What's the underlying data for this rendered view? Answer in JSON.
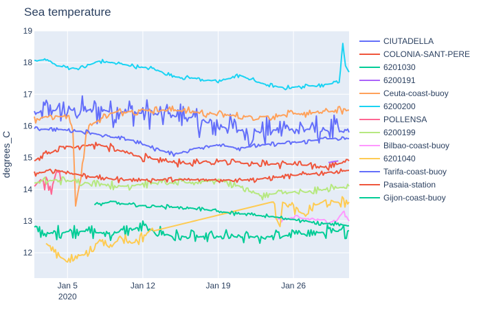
{
  "chart_data": {
    "type": "line",
    "title": "Sea temperature",
    "xlabel": "",
    "ylabel": "degrees_C",
    "x_range": [
      "2020-01-01T22:00",
      "2020-01-31T04:00"
    ],
    "xticks": [
      {
        "date": "2020-01-05",
        "label": "Jan 5",
        "sublabel": "2020"
      },
      {
        "date": "2020-01-12",
        "label": "Jan 12",
        "sublabel": ""
      },
      {
        "date": "2020-01-19",
        "label": "Jan 19",
        "sublabel": ""
      },
      {
        "date": "2020-01-26",
        "label": "Jan 26",
        "sublabel": ""
      }
    ],
    "ylim": [
      11.2,
      19.0
    ],
    "yticks": [
      12,
      13,
      14,
      15,
      16,
      17,
      18,
      19
    ],
    "grid": true,
    "legend_position": "right",
    "series": [
      {
        "name": "CIUTADELLA",
        "color": "#636efa",
        "style": "noisy",
        "amp": 0.55,
        "points": [
          [
            "2020-01-01T22:00",
            16.4
          ],
          [
            "2020-01-04",
            16.5
          ],
          [
            "2020-01-08",
            16.5
          ],
          [
            "2020-01-12",
            16.4
          ],
          [
            "2020-01-16",
            16.3
          ],
          [
            "2020-01-19",
            16.0
          ],
          [
            "2020-01-22",
            15.8
          ],
          [
            "2020-01-25",
            15.9
          ],
          [
            "2020-01-28",
            15.9
          ],
          [
            "2020-01-31T04:00",
            15.8
          ]
        ]
      },
      {
        "name": "COLONIA-SANT-PERE",
        "color": "#ef553b",
        "style": "noisy",
        "amp": 0.15,
        "points": [
          [
            "2020-01-01T22:00",
            14.9
          ],
          [
            "2020-01-03",
            15.1
          ],
          [
            "2020-01-05",
            15.35
          ],
          [
            "2020-01-08",
            15.4
          ],
          [
            "2020-01-10",
            15.2
          ],
          [
            "2020-01-12",
            15.0
          ],
          [
            "2020-01-14",
            14.9
          ],
          [
            "2020-01-16",
            14.8
          ],
          [
            "2020-01-18",
            14.9
          ],
          [
            "2020-01-20",
            14.9
          ],
          [
            "2020-01-23",
            14.8
          ],
          [
            "2020-01-26",
            14.8
          ],
          [
            "2020-01-29",
            14.7
          ],
          [
            "2020-01-31T04:00",
            14.9
          ]
        ]
      },
      {
        "name": "6201030",
        "color": "#00cc96",
        "style": "noisy",
        "amp": 0.25,
        "points": [
          [
            "2020-01-01T22:00",
            12.8
          ],
          [
            "2020-01-03",
            12.6
          ],
          [
            "2020-01-06",
            12.7
          ],
          [
            "2020-01-09",
            12.6
          ],
          [
            "2020-01-12",
            12.8
          ],
          [
            "2020-01-15",
            12.5
          ],
          [
            "2020-01-18",
            12.5
          ],
          [
            "2020-01-21",
            12.5
          ],
          [
            "2020-01-24",
            12.5
          ],
          [
            "2020-01-27",
            12.6
          ],
          [
            "2020-01-31T04:00",
            12.7
          ]
        ]
      },
      {
        "name": "6200191",
        "color": "#ab63fa",
        "style": "noisy",
        "amp": 0.02,
        "points": [
          [
            "2020-01-29T06:00",
            14.85
          ],
          [
            "2020-01-30T04:00",
            14.9
          ]
        ]
      },
      {
        "name": "Ceuta-coast-buoy",
        "color": "#ffa15a",
        "style": "noisy",
        "amp": 0.15,
        "points": [
          [
            "2020-01-01T22:00",
            16.2
          ],
          [
            "2020-01-03",
            16.3
          ],
          [
            "2020-01-05",
            16.3
          ],
          [
            "2020-01-05T12:00",
            15.9
          ],
          [
            "2020-01-05T18:00",
            13.5
          ],
          [
            "2020-01-06T06:00",
            14.4
          ],
          [
            "2020-01-06T18:00",
            15.8
          ],
          [
            "2020-01-07",
            16.0
          ],
          [
            "2020-01-09",
            16.4
          ],
          [
            "2020-01-12",
            16.5
          ],
          [
            "2020-01-15",
            16.5
          ],
          [
            "2020-01-18",
            16.4
          ],
          [
            "2020-01-21",
            16.3
          ],
          [
            "2020-01-24",
            16.3
          ],
          [
            "2020-01-27",
            16.4
          ],
          [
            "2020-01-31T04:00",
            16.5
          ]
        ]
      },
      {
        "name": "6200200",
        "color": "#19d3f3",
        "style": "noisy",
        "amp": 0.08,
        "points": [
          [
            "2020-01-01T22:00",
            18.05
          ],
          [
            "2020-01-03",
            18.1
          ],
          [
            "2020-01-04",
            17.9
          ],
          [
            "2020-01-06",
            17.8
          ],
          [
            "2020-01-08",
            18.05
          ],
          [
            "2020-01-10",
            17.95
          ],
          [
            "2020-01-13",
            17.8
          ],
          [
            "2020-01-15",
            17.55
          ],
          [
            "2020-01-17",
            17.5
          ],
          [
            "2020-01-19",
            17.4
          ],
          [
            "2020-01-21",
            17.6
          ],
          [
            "2020-01-23",
            17.35
          ],
          [
            "2020-01-25",
            17.2
          ],
          [
            "2020-01-27",
            17.25
          ],
          [
            "2020-01-29",
            17.3
          ],
          [
            "2020-01-30T06:00",
            17.4
          ],
          [
            "2020-01-30T14:00",
            18.6
          ],
          [
            "2020-01-30T20:00",
            17.9
          ],
          [
            "2020-01-31T04:00",
            17.7
          ]
        ]
      },
      {
        "name": "POLLENSA",
        "color": "#ff6692",
        "style": "noisy",
        "amp": 0.3,
        "points": [
          [
            "2020-01-01T22:00",
            14.1
          ],
          [
            "2020-01-02T12:00",
            14.3
          ],
          [
            "2020-01-03T12:00",
            14.0
          ],
          [
            "2020-01-04",
            14.6
          ],
          [
            "2020-01-04T12:00",
            14.3
          ]
        ]
      },
      {
        "name": "6200199",
        "color": "#b6e880",
        "style": "noisy",
        "amp": 0.15,
        "points": [
          [
            "2020-01-01T22:00",
            14.2
          ],
          [
            "2020-01-04",
            14.3
          ],
          [
            "2020-01-07",
            14.2
          ],
          [
            "2020-01-10",
            14.1
          ],
          [
            "2020-01-13",
            14.2
          ],
          [
            "2020-01-16",
            14.2
          ],
          [
            "2020-01-19",
            14.3
          ],
          [
            "2020-01-21",
            14.1
          ],
          [
            "2020-01-23",
            13.8
          ],
          [
            "2020-01-25",
            13.9
          ],
          [
            "2020-01-27",
            13.9
          ],
          [
            "2020-01-29",
            14.0
          ],
          [
            "2020-01-31T04:00",
            14.1
          ]
        ]
      },
      {
        "name": "Bilbao-coast-buoy",
        "color": "#ff97ff",
        "style": "noisy",
        "amp": 0.1,
        "points": [
          [
            "2020-01-24T12:00",
            13.0
          ],
          [
            "2020-01-26",
            13.1
          ],
          [
            "2020-01-28",
            13.05
          ],
          [
            "2020-01-30",
            13.0
          ],
          [
            "2020-01-30T14:00",
            13.3
          ],
          [
            "2020-01-31T04:00",
            13.0
          ]
        ]
      },
      {
        "name": "6201040",
        "color": "#fecb52",
        "style": "noisy",
        "amp": 0.2,
        "points": [
          [
            "2020-01-03",
            12.3
          ],
          [
            "2020-01-04",
            12.0
          ],
          [
            "2020-01-05",
            11.7
          ],
          [
            "2020-01-06",
            11.9
          ],
          [
            "2020-01-07",
            12.0
          ],
          [
            "2020-01-08",
            12.4
          ],
          [
            "2020-01-09",
            12.2
          ],
          [
            "2020-01-10",
            12.5
          ],
          [
            "2020-01-11",
            12.3
          ],
          [
            "2020-01-12",
            12.5
          ],
          [
            "2020-01-13",
            12.8
          ],
          [
            "2020-01-24",
            13.6
          ],
          [
            "2020-01-24T18:00",
            12.9
          ],
          [
            "2020-01-25",
            13.6
          ],
          [
            "2020-01-26",
            13.4
          ],
          [
            "2020-01-27",
            13.2
          ],
          [
            "2020-01-28",
            13.5
          ],
          [
            "2020-01-29",
            13.6
          ],
          [
            "2020-01-31T04:00",
            13.6
          ]
        ]
      },
      {
        "name": "Tarifa-coast-buoy",
        "color": "#636efa",
        "style": "noisy",
        "amp": 0.08,
        "points": [
          [
            "2020-01-01T22:00",
            15.9
          ],
          [
            "2020-01-04",
            15.9
          ],
          [
            "2020-01-07",
            15.8
          ],
          [
            "2020-01-09",
            15.65
          ],
          [
            "2020-01-11",
            15.55
          ],
          [
            "2020-01-13",
            15.3
          ],
          [
            "2020-01-15",
            15.1
          ],
          [
            "2020-01-17",
            15.3
          ],
          [
            "2020-01-19",
            15.4
          ],
          [
            "2020-01-21",
            15.3
          ],
          [
            "2020-01-23",
            15.4
          ],
          [
            "2020-01-25",
            15.45
          ],
          [
            "2020-01-27",
            15.5
          ],
          [
            "2020-01-29",
            15.6
          ],
          [
            "2020-01-31T04:00",
            15.6
          ]
        ]
      },
      {
        "name": "Pasaia-station",
        "color": "#ef553b",
        "style": "noisy",
        "amp": 0.1,
        "points": [
          [
            "2020-01-01T22:00",
            14.5
          ],
          [
            "2020-01-04",
            14.6
          ],
          [
            "2020-01-07",
            14.4
          ],
          [
            "2020-01-10",
            14.3
          ],
          [
            "2020-01-13",
            14.3
          ],
          [
            "2020-01-16",
            14.3
          ],
          [
            "2020-01-19",
            14.3
          ],
          [
            "2020-01-22",
            14.3
          ],
          [
            "2020-01-25",
            14.4
          ],
          [
            "2020-01-28",
            14.5
          ],
          [
            "2020-01-31T04:00",
            14.6
          ]
        ]
      },
      {
        "name": "Gijon-coast-buoy",
        "color": "#00cc96",
        "style": "noisy",
        "amp": 0.08,
        "points": [
          [
            "2020-01-07T12:00",
            13.5
          ],
          [
            "2020-01-09",
            13.6
          ],
          [
            "2020-01-11",
            13.5
          ],
          [
            "2020-01-14",
            13.45
          ],
          [
            "2020-01-17",
            13.4
          ],
          [
            "2020-01-19",
            13.3
          ],
          [
            "2020-01-22",
            13.2
          ],
          [
            "2020-01-25",
            13.1
          ],
          [
            "2020-01-28",
            12.95
          ],
          [
            "2020-01-30",
            12.9
          ],
          [
            "2020-01-31T04:00",
            12.85
          ]
        ]
      }
    ]
  }
}
